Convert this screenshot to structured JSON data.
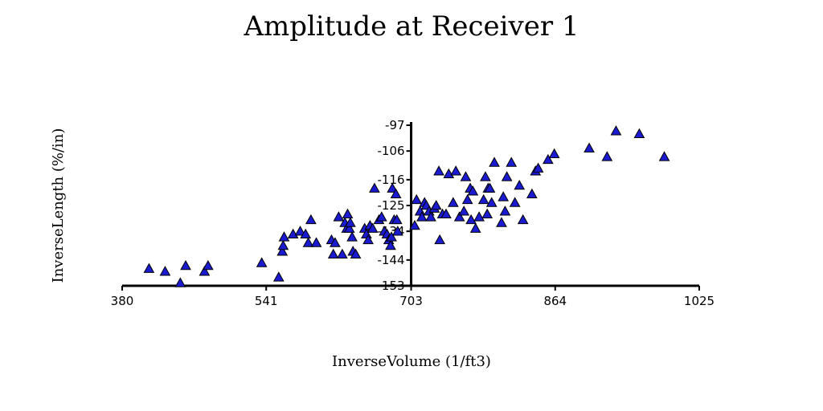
{
  "chart_data": {
    "type": "scatter",
    "title": "Amplitude at Receiver 1",
    "xlabel": "InverseVolume (1/ft3)",
    "ylabel": "InverseLength (%/in)",
    "xlim": [
      380,
      1025
    ],
    "ylim": [
      -153,
      -97
    ],
    "xticks": [
      380,
      541,
      703,
      864,
      1025
    ],
    "yticks": [
      -97,
      -106,
      -116,
      -125,
      -134,
      -144,
      -153
    ],
    "y_axis_at_x": 703,
    "marker": "triangle",
    "marker_color": "#1a1ad0",
    "grid": false,
    "legend": "none",
    "points": [
      [
        410,
        -147
      ],
      [
        428,
        -148
      ],
      [
        445,
        -152
      ],
      [
        451,
        -146
      ],
      [
        472,
        -148
      ],
      [
        476,
        -146
      ],
      [
        536,
        -145
      ],
      [
        555,
        -150
      ],
      [
        559,
        -141
      ],
      [
        560,
        -139
      ],
      [
        561,
        -136
      ],
      [
        571,
        -135
      ],
      [
        579,
        -134
      ],
      [
        585,
        -135
      ],
      [
        588,
        -138
      ],
      [
        591,
        -130
      ],
      [
        597,
        -138
      ],
      [
        614,
        -137
      ],
      [
        616,
        -142
      ],
      [
        618,
        -138
      ],
      [
        622,
        -129
      ],
      [
        626,
        -142
      ],
      [
        629,
        -131
      ],
      [
        631,
        -133
      ],
      [
        632,
        -128
      ],
      [
        634,
        -133
      ],
      [
        635,
        -131
      ],
      [
        637,
        -136
      ],
      [
        638,
        -141
      ],
      [
        641,
        -142
      ],
      [
        651,
        -133
      ],
      [
        653,
        -135
      ],
      [
        655,
        -137
      ],
      [
        657,
        -132
      ],
      [
        660,
        -133
      ],
      [
        662,
        -119
      ],
      [
        667,
        -130
      ],
      [
        670,
        -129
      ],
      [
        673,
        -134
      ],
      [
        676,
        -135
      ],
      [
        678,
        -137
      ],
      [
        680,
        -139
      ],
      [
        681,
        -136
      ],
      [
        682,
        -119
      ],
      [
        684,
        -130
      ],
      [
        686,
        -121
      ],
      [
        687,
        -130
      ],
      [
        688,
        -134
      ],
      [
        707,
        -132
      ],
      [
        709,
        -123
      ],
      [
        713,
        -127
      ],
      [
        715,
        -129
      ],
      [
        718,
        -124
      ],
      [
        720,
        -125
      ],
      [
        723,
        -127
      ],
      [
        725,
        -129
      ],
      [
        729,
        -126
      ],
      [
        731,
        -125
      ],
      [
        734,
        -113
      ],
      [
        735,
        -137
      ],
      [
        738,
        -128
      ],
      [
        742,
        -128
      ],
      [
        745,
        -114
      ],
      [
        750,
        -124
      ],
      [
        753,
        -113
      ],
      [
        757,
        -129
      ],
      [
        762,
        -127
      ],
      [
        764,
        -115
      ],
      [
        766,
        -123
      ],
      [
        769,
        -119
      ],
      [
        770,
        -130
      ],
      [
        772,
        -120
      ],
      [
        775,
        -133
      ],
      [
        779,
        -129
      ],
      [
        784,
        -123
      ],
      [
        786,
        -115
      ],
      [
        788,
        -128
      ],
      [
        789,
        -119
      ],
      [
        791,
        -119
      ],
      [
        793,
        -124
      ],
      [
        796,
        -110
      ],
      [
        804,
        -131
      ],
      [
        806,
        -122
      ],
      [
        808,
        -127
      ],
      [
        810,
        -115
      ],
      [
        815,
        -110
      ],
      [
        819,
        -124
      ],
      [
        824,
        -118
      ],
      [
        828,
        -130
      ],
      [
        838,
        -121
      ],
      [
        842,
        -113
      ],
      [
        845,
        -112
      ],
      [
        856,
        -109
      ],
      [
        863,
        -107
      ],
      [
        902,
        -105
      ],
      [
        922,
        -108
      ],
      [
        932,
        -99
      ],
      [
        958,
        -100
      ],
      [
        986,
        -108
      ]
    ]
  }
}
